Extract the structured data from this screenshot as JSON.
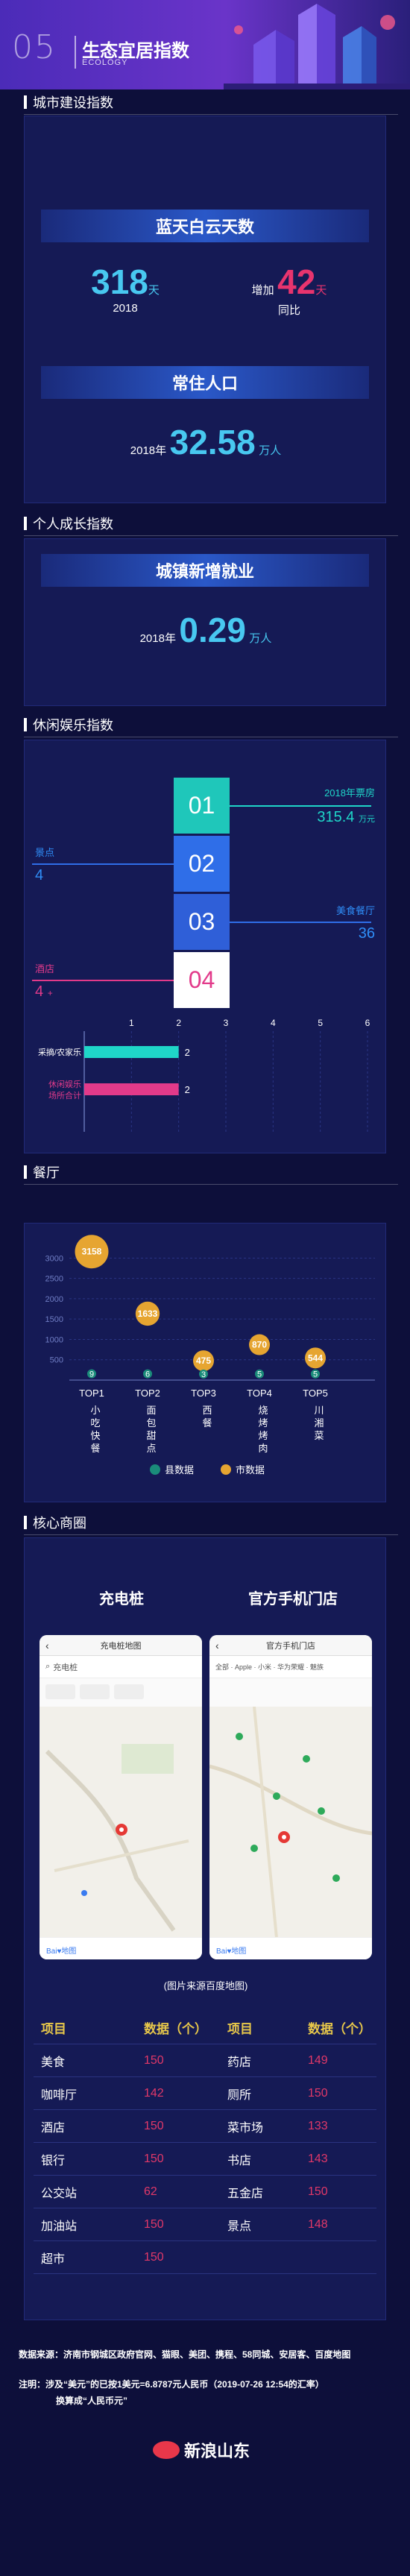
{
  "hero": {
    "num": "05",
    "title": "生态宜居指数",
    "subtitle": "ECOLOGY"
  },
  "sections": {
    "city": "城市建设指数",
    "personal": "个人成长指数",
    "leisure": "休闲娱乐指数",
    "restaurant": "餐厅",
    "business": "核心商圈"
  },
  "city": {
    "banner1": "蓝天白云天数",
    "days_value": "318",
    "days_unit": "天",
    "days_year": "2018",
    "increase_prefix": "增加",
    "increase_value": "42",
    "increase_unit": "天",
    "increase_label": "同比",
    "banner2": "常住人口",
    "pop_year": "2018年",
    "pop_value": "32.58",
    "pop_unit": "万人"
  },
  "personal": {
    "banner": "城镇新增就业",
    "year": "2018年",
    "value": "0.29",
    "unit": "万人"
  },
  "leisure": {
    "steps": [
      "01",
      "02",
      "03",
      "04"
    ],
    "callouts": {
      "c01_label": "2018年票房",
      "c01_value": "315.4",
      "c01_unit": "万元",
      "c02_label": "景点",
      "c02_value": "4",
      "c03_label": "美食餐厅",
      "c03_value": "36",
      "c04_label": "酒店",
      "c04_value": "4",
      "c04_unit": "+"
    },
    "colors": {
      "c01": "#1fd6c8",
      "c02": "#2f6ee8",
      "c03": "#2f6ee8",
      "c04": "#e23a8a"
    }
  },
  "chart_data": [
    {
      "type": "bar",
      "categories": [
        "采摘/农家乐",
        "休闲娱乐场所合计"
      ],
      "values": [
        2,
        2
      ],
      "xticks": [
        "1",
        "2",
        "3",
        "4",
        "5",
        "6"
      ],
      "xlim": [
        0,
        6
      ],
      "colors": [
        "#1fd6c8",
        "#e23a8a"
      ]
    },
    {
      "type": "scatter",
      "categories": [
        "TOP1",
        "TOP2",
        "TOP3",
        "TOP4",
        "TOP5"
      ],
      "category_names": [
        "小吃快餐",
        "面包甜点",
        "西餐",
        "烧烤烤肉",
        "川湘菜"
      ],
      "yticks": [
        "500",
        "1000",
        "1500",
        "2000",
        "2500",
        "3000"
      ],
      "ylim": [
        0,
        3300
      ],
      "series": [
        {
          "name": "县数据",
          "values": [
            9,
            6,
            3,
            5,
            5
          ],
          "color": "#1a8c7a"
        },
        {
          "name": "市数据",
          "values": [
            3158,
            1633,
            475,
            870,
            544
          ],
          "color": "#e6a531"
        }
      ]
    }
  ],
  "business": {
    "col1_title": "充电桩",
    "col2_title": "官方手机门店",
    "phone1_title": "充电桩地图",
    "phone1_search": "充电桩",
    "phone2_title": "官方手机门店",
    "phone2_search": "全部 · Apple · 小米 · 华为荣耀 · 魅族",
    "caption": "(图片来源百度地图)"
  },
  "table": {
    "headers": [
      "项目",
      "数据（个）",
      "项目",
      "数据（个）"
    ],
    "rows": [
      [
        "美食",
        "150",
        "药店",
        "149"
      ],
      [
        "咖啡厅",
        "142",
        "厕所",
        "150"
      ],
      [
        "酒店",
        "150",
        "菜市场",
        "133"
      ],
      [
        "银行",
        "150",
        "书店",
        "143"
      ],
      [
        "公交站",
        "62",
        "五金店",
        "150"
      ],
      [
        "加油站",
        "150",
        "景点",
        "148"
      ],
      [
        "超市",
        "150",
        "",
        ""
      ]
    ]
  },
  "footer": {
    "source": "数据来源：济南市钢城区政府官网、猫眼、美团、携程、58同城、安居客、百度地图",
    "note1": "注明：涉及“美元”的已按1美元=6.8787元人民币（2019-07-26 12:54的汇率）",
    "note2": "换算成“人民币元”",
    "logo": "新浪山东"
  }
}
